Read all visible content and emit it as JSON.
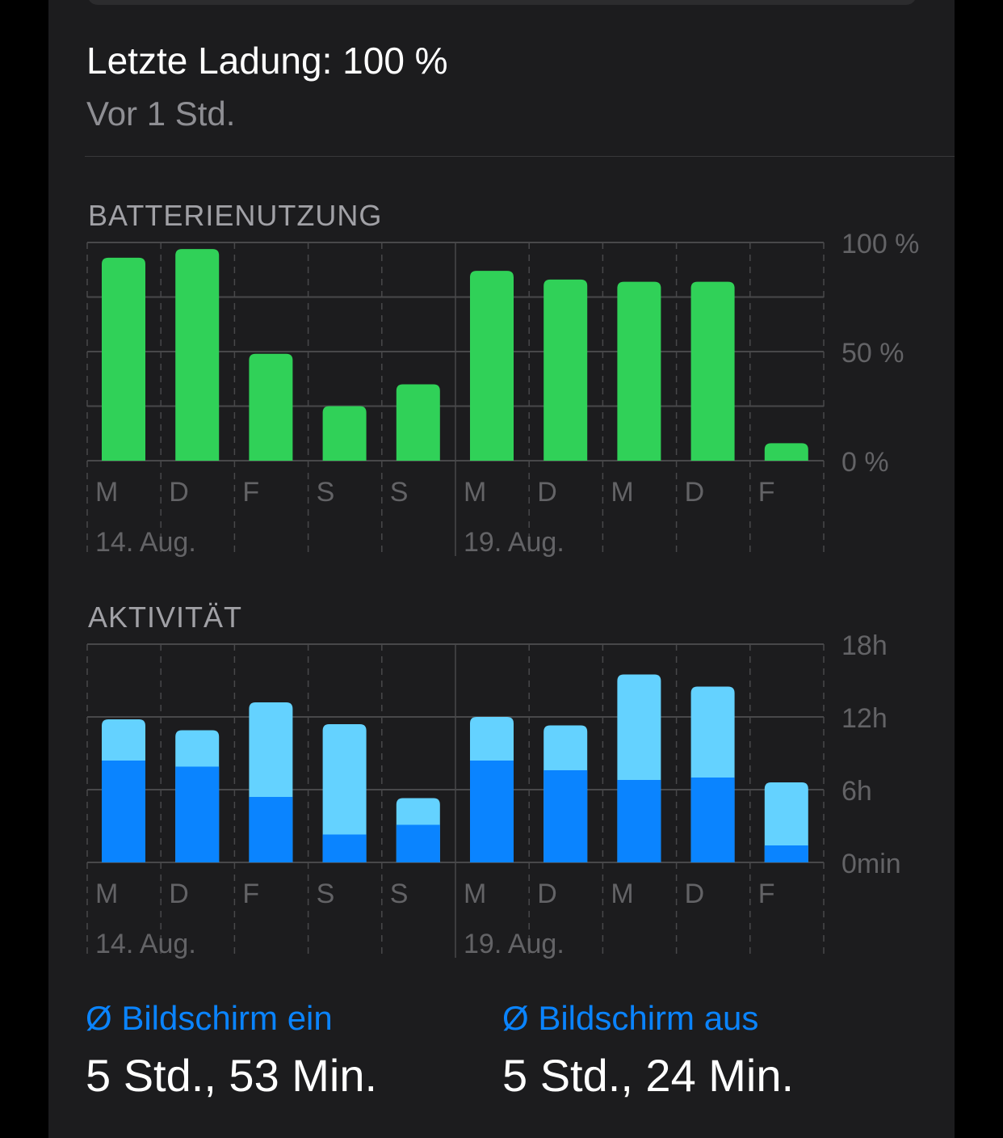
{
  "header": {
    "title": "Letzte Ladung: 100 %",
    "subtitle": "Vor 1 Std."
  },
  "colors": {
    "battery": "#30d158",
    "screen_on": "#0a84ff",
    "screen_off": "#64d2ff",
    "grid": "#48484a",
    "label": "#636366"
  },
  "chart_data": [
    {
      "type": "bar",
      "title": "BATTERIENUTZUNG",
      "categories": [
        "M",
        "D",
        "F",
        "S",
        "S",
        "M",
        "D",
        "M",
        "D",
        "F"
      ],
      "week_labels": [
        "14. Aug.",
        "19. Aug."
      ],
      "values": [
        93,
        97,
        49,
        25,
        35,
        87,
        83,
        82,
        82,
        8
      ],
      "ylim": [
        0,
        100
      ],
      "yticks": [
        0,
        50,
        100
      ],
      "ytick_labels": [
        "0 %",
        "50 %",
        "100 %"
      ],
      "grid": true
    },
    {
      "type": "bar",
      "stacked": true,
      "title": "AKTIVITÄT",
      "categories": [
        "M",
        "D",
        "F",
        "S",
        "S",
        "M",
        "D",
        "M",
        "D",
        "F"
      ],
      "week_labels": [
        "14. Aug.",
        "19. Aug."
      ],
      "series": [
        {
          "key": "screen_on",
          "values": [
            8.4,
            7.9,
            5.4,
            2.3,
            3.1,
            8.4,
            7.6,
            6.8,
            7.0,
            1.4
          ]
        },
        {
          "key": "screen_off",
          "values": [
            3.4,
            3.0,
            7.8,
            9.1,
            2.2,
            3.6,
            3.7,
            8.7,
            7.5,
            5.2
          ]
        }
      ],
      "ylim": [
        0,
        18
      ],
      "yticks": [
        0,
        6,
        12,
        18
      ],
      "ytick_labels": [
        "0min",
        "6h",
        "12h",
        "18h"
      ],
      "grid": true
    }
  ],
  "stats": {
    "screen_on_label": "Ø Bildschirm ein",
    "screen_on_value": "5 Std., 53 Min.",
    "screen_off_label": "Ø Bildschirm aus",
    "screen_off_value": "5 Std., 24 Min."
  }
}
